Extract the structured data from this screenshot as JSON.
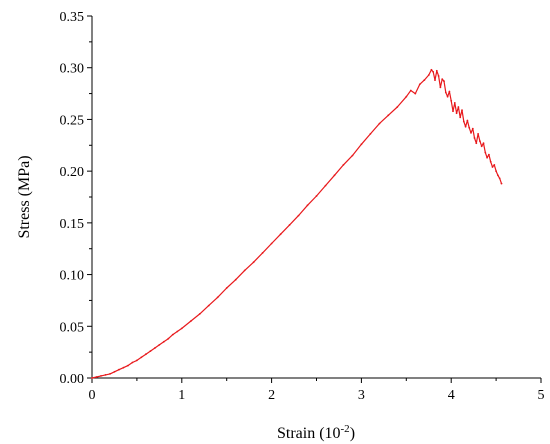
{
  "chart_data": {
    "type": "line",
    "xlabel": "Strain (10",
    "xlabel_sup": "-2",
    "xlabel_end": ")",
    "ylabel": "Stress (MPa)",
    "xlim": [
      0,
      5
    ],
    "ylim": [
      0,
      0.35
    ],
    "grid": false,
    "x_ticks": [
      "0",
      "1",
      "2",
      "3",
      "4",
      "5"
    ],
    "y_ticks": [
      "0.00",
      "0.05",
      "0.10",
      "0.15",
      "0.20",
      "0.25",
      "0.30",
      "0.35"
    ],
    "series": [
      {
        "color": "#e8191c",
        "points": [
          [
            0.0,
            0.0
          ],
          [
            0.05,
            0.001
          ],
          [
            0.1,
            0.002
          ],
          [
            0.15,
            0.003
          ],
          [
            0.2,
            0.004
          ],
          [
            0.25,
            0.006
          ],
          [
            0.3,
            0.008
          ],
          [
            0.35,
            0.01
          ],
          [
            0.4,
            0.012
          ],
          [
            0.45,
            0.015
          ],
          [
            0.5,
            0.017
          ],
          [
            0.55,
            0.02
          ],
          [
            0.6,
            0.023
          ],
          [
            0.65,
            0.026
          ],
          [
            0.7,
            0.029
          ],
          [
            0.75,
            0.032
          ],
          [
            0.8,
            0.035
          ],
          [
            0.85,
            0.038
          ],
          [
            0.9,
            0.042
          ],
          [
            0.95,
            0.045
          ],
          [
            1.0,
            0.048
          ],
          [
            1.1,
            0.055
          ],
          [
            1.2,
            0.062
          ],
          [
            1.3,
            0.07
          ],
          [
            1.4,
            0.078
          ],
          [
            1.5,
            0.087
          ],
          [
            1.6,
            0.095
          ],
          [
            1.7,
            0.104
          ],
          [
            1.8,
            0.112
          ],
          [
            1.9,
            0.121
          ],
          [
            2.0,
            0.13
          ],
          [
            2.1,
            0.139
          ],
          [
            2.2,
            0.148
          ],
          [
            2.3,
            0.157
          ],
          [
            2.4,
            0.167
          ],
          [
            2.5,
            0.176
          ],
          [
            2.6,
            0.186
          ],
          [
            2.7,
            0.196
          ],
          [
            2.8,
            0.206
          ],
          [
            2.9,
            0.215
          ],
          [
            3.0,
            0.226
          ],
          [
            3.1,
            0.236
          ],
          [
            3.2,
            0.246
          ],
          [
            3.3,
            0.254
          ],
          [
            3.4,
            0.262
          ],
          [
            3.5,
            0.272
          ],
          [
            3.55,
            0.278
          ],
          [
            3.6,
            0.275
          ],
          [
            3.65,
            0.284
          ],
          [
            3.7,
            0.288
          ],
          [
            3.75,
            0.293
          ],
          [
            3.78,
            0.298
          ],
          [
            3.8,
            0.296
          ],
          [
            3.82,
            0.288
          ],
          [
            3.84,
            0.297
          ],
          [
            3.86,
            0.292
          ],
          [
            3.88,
            0.281
          ],
          [
            3.9,
            0.289
          ],
          [
            3.92,
            0.287
          ],
          [
            3.94,
            0.276
          ],
          [
            3.96,
            0.272
          ],
          [
            3.98,
            0.277
          ],
          [
            4.0,
            0.268
          ],
          [
            4.02,
            0.258
          ],
          [
            4.04,
            0.266
          ],
          [
            4.06,
            0.256
          ],
          [
            4.08,
            0.262
          ],
          [
            4.1,
            0.252
          ],
          [
            4.12,
            0.259
          ],
          [
            4.14,
            0.248
          ],
          [
            4.16,
            0.243
          ],
          [
            4.18,
            0.249
          ],
          [
            4.2,
            0.242
          ],
          [
            4.22,
            0.237
          ],
          [
            4.24,
            0.241
          ],
          [
            4.26,
            0.232
          ],
          [
            4.28,
            0.227
          ],
          [
            4.3,
            0.236
          ],
          [
            4.32,
            0.229
          ],
          [
            4.34,
            0.224
          ],
          [
            4.36,
            0.227
          ],
          [
            4.38,
            0.218
          ],
          [
            4.4,
            0.213
          ],
          [
            4.42,
            0.216
          ],
          [
            4.44,
            0.209
          ],
          [
            4.46,
            0.204
          ],
          [
            4.48,
            0.206
          ],
          [
            4.5,
            0.2
          ],
          [
            4.52,
            0.196
          ],
          [
            4.54,
            0.193
          ],
          [
            4.56,
            0.188
          ]
        ]
      }
    ]
  }
}
